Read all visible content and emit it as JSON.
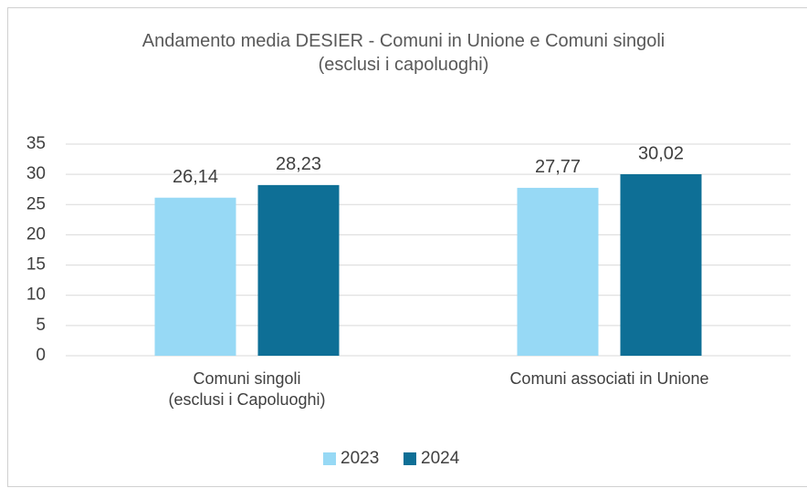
{
  "chart_data": {
    "type": "bar",
    "title": "Andamento media DESIER - Comuni in Unione e Comuni singoli\n(esclusi i capoluoghi)",
    "categories": [
      "Comuni singoli\n(esclusi i Capoluoghi)",
      "Comuni associati in Unione"
    ],
    "series": [
      {
        "name": "2023",
        "color": "#97d9f5",
        "values": [
          26.14,
          27.77
        ],
        "value_labels": [
          "26,14",
          "27,77"
        ]
      },
      {
        "name": "2024",
        "color": "#0e6f96",
        "values": [
          28.23,
          30.02
        ],
        "value_labels": [
          "28,23",
          "30,02"
        ]
      }
    ],
    "ylim": [
      0,
      35
    ],
    "yticks": [
      0,
      5,
      10,
      15,
      20,
      25,
      30,
      35
    ],
    "grid": true,
    "legend": "bottom"
  }
}
